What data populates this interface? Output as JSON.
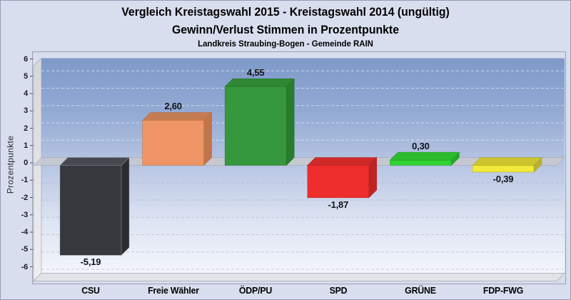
{
  "header": {
    "title_line1": "Vergleich Kreistagswahl 2015 - Kreistagswahl 2014 (ungültig)",
    "title_line2": "Gewinn/Verlust Stimmen in Prozentpunkte",
    "region_line": "Landkreis Straubing-Bogen - Gemeinde RAIN"
  },
  "chart_data": {
    "type": "bar",
    "style": "3d-column",
    "title": "Vergleich Kreistagswahl 2015 - Kreistagswahl 2014 (ungültig)",
    "subtitle": "Gewinn/Verlust Stimmen in Prozentpunkte",
    "caption": "Landkreis Straubing-Bogen - Gemeinde RAIN",
    "xlabel": "",
    "ylabel": "Prozentpunkte",
    "ylim": [
      -6,
      6
    ],
    "ytick_values": [
      6,
      5,
      4,
      3,
      2,
      1,
      0,
      -1,
      -2,
      -3,
      -4,
      -5,
      -6
    ],
    "ytick_labels": [
      "6",
      "5",
      "4",
      "3",
      "2",
      "1",
      "0",
      "-1",
      "-2",
      "-3",
      "-4",
      "-5",
      "-6"
    ],
    "grid": true,
    "legend": false,
    "categories": [
      "CSU",
      "Freie Wähler",
      "ÖDP/PU",
      "SPD",
      "GRÜNE",
      "FDP-FWG"
    ],
    "values": [
      -5.19,
      2.6,
      4.55,
      -1.87,
      0.3,
      -0.39
    ],
    "value_labels": [
      "-5,19",
      "2,60",
      "4,55",
      "-1,87",
      "0,30",
      "-0,39"
    ],
    "bars": [
      {
        "category": "CSU",
        "value": -5.19,
        "label": "-5,19",
        "front": "#35383d",
        "top": "#464a50",
        "side": "#2a2c31",
        "edge": "#8e939c"
      },
      {
        "category": "Freie Wähler",
        "value": 2.6,
        "label": "2,60",
        "front": "#ef9565",
        "top": "#c67c51",
        "side": "#c3754a",
        "edge": "#b06a40"
      },
      {
        "category": "ÖDP/PU",
        "value": 4.55,
        "label": "4,55",
        "front": "#36983c",
        "top": "#2f8834",
        "side": "#287c2e",
        "edge": "#256f2a"
      },
      {
        "category": "SPD",
        "value": -1.87,
        "label": "-1,87",
        "front": "#ee2d2d",
        "top": "#d02929",
        "side": "#be2424",
        "edge": "#aa2020"
      },
      {
        "category": "GRÜNE",
        "value": 0.3,
        "label": "0,30",
        "front": "#31d331",
        "top": "#2bbb2b",
        "side": "#25a825",
        "edge": "#1f9420"
      },
      {
        "category": "FDP-FWG",
        "value": -0.39,
        "label": "-0,39",
        "front": "#f1e93b",
        "top": "#ccc52f",
        "side": "#bab22a",
        "edge": "#a29b26"
      }
    ]
  },
  "colors": {
    "page_bg": "#d9deef",
    "frame_border": "#9aa0b2",
    "plot_gradient_top": "#7e9aca",
    "plot_gradient_bottom": "#f3f6fb",
    "wall_fill": "#dcdcdf",
    "floor_fill": "#e2e3e7",
    "zero_band": "#c6c9cf",
    "grid_positive": "#ffffff",
    "grid_negative": "#aab1c2",
    "text": "#14141c"
  }
}
